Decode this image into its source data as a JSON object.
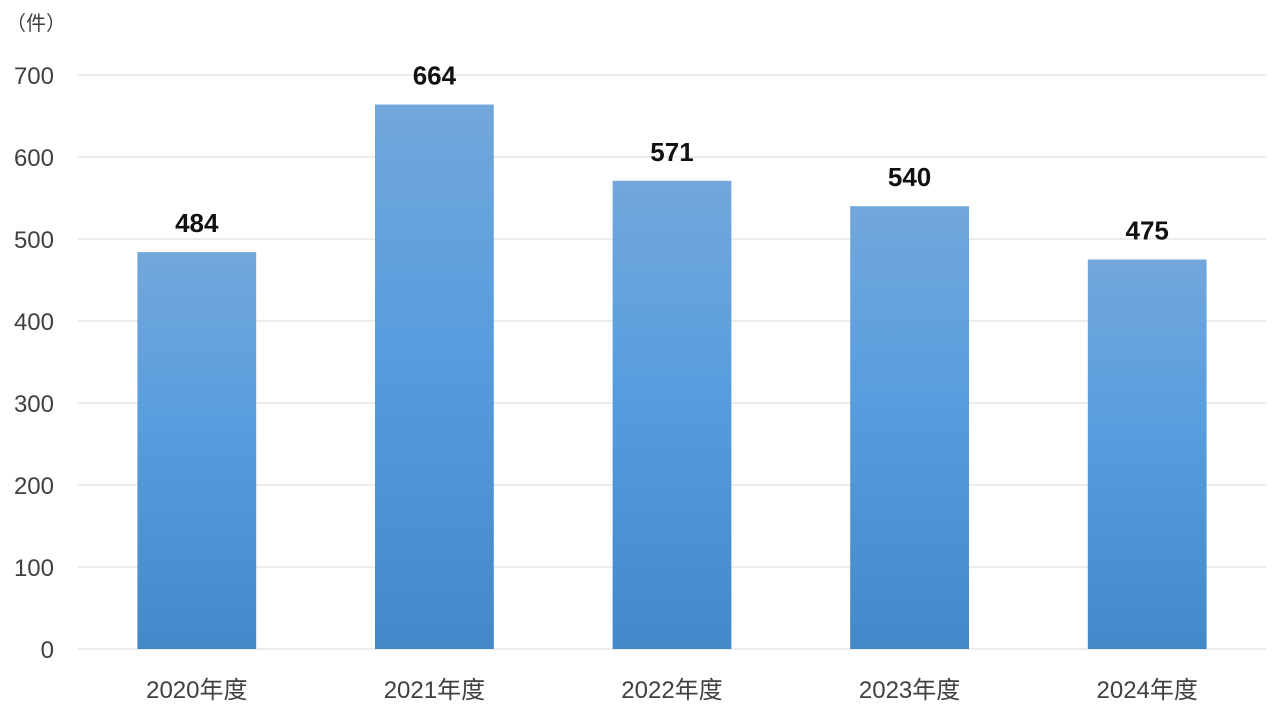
{
  "chart_data": {
    "type": "bar",
    "categories": [
      "2020年度",
      "2021年度",
      "2022年度",
      "2023年度",
      "2024年度"
    ],
    "values": [
      484,
      664,
      571,
      540,
      475
    ],
    "ylabel": "（件）",
    "ylim": [
      0,
      700
    ],
    "yticks": [
      0,
      100,
      200,
      300,
      400,
      500,
      600,
      700
    ],
    "grid": true,
    "data_labels": true,
    "bar_color_top": "#72a7dc",
    "bar_color_mid": "#579dde",
    "bar_color_bottom": "#4388c8"
  }
}
